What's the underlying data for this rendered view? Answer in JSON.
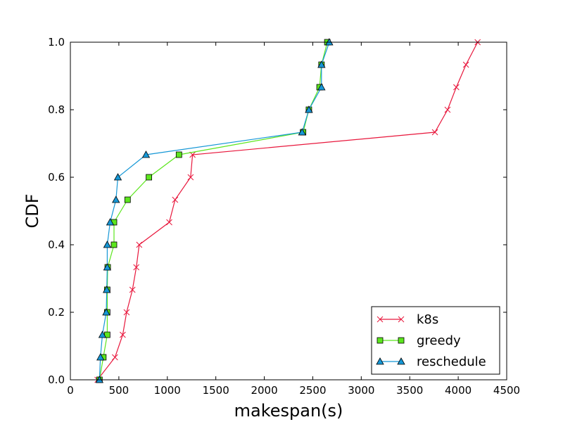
{
  "chart_data": {
    "type": "line",
    "xlabel": "makespan(s)",
    "ylabel": "CDF",
    "xlim": [
      0,
      4500
    ],
    "ylim": [
      0.0,
      1.0
    ],
    "xticks": [
      0,
      500,
      1000,
      1500,
      2000,
      2500,
      3000,
      3500,
      4000,
      4500
    ],
    "yticks": [
      0.0,
      0.2,
      0.4,
      0.6,
      0.8,
      1.0
    ],
    "xtick_labels": [
      "0",
      "500",
      "1000",
      "1500",
      "2000",
      "2500",
      "3000",
      "3500",
      "4000",
      "4500"
    ],
    "ytick_labels": [
      "0.0",
      "0.2",
      "0.4",
      "0.6",
      "0.8",
      "1.0"
    ],
    "grid": false,
    "legend_position": "bottom-right",
    "series": [
      {
        "name": "k8s",
        "color": "#e8173c",
        "marker": "x",
        "points": [
          [
            280,
            0.0
          ],
          [
            460,
            0.0667
          ],
          [
            540,
            0.1333
          ],
          [
            580,
            0.2
          ],
          [
            640,
            0.2667
          ],
          [
            680,
            0.3333
          ],
          [
            710,
            0.4
          ],
          [
            1020,
            0.4667
          ],
          [
            1080,
            0.5333
          ],
          [
            1240,
            0.6
          ],
          [
            1260,
            0.6667
          ],
          [
            3760,
            0.7333
          ],
          [
            3890,
            0.8
          ],
          [
            3980,
            0.8667
          ],
          [
            4080,
            0.9333
          ],
          [
            4200,
            1.0
          ]
        ]
      },
      {
        "name": "greedy",
        "color": "#5ce61e",
        "marker": "square",
        "points": [
          [
            300,
            0.0
          ],
          [
            340,
            0.0667
          ],
          [
            380,
            0.1333
          ],
          [
            380,
            0.2
          ],
          [
            380,
            0.2667
          ],
          [
            385,
            0.3333
          ],
          [
            450,
            0.4
          ],
          [
            450,
            0.4667
          ],
          [
            590,
            0.5333
          ],
          [
            810,
            0.6
          ],
          [
            1120,
            0.6667
          ],
          [
            2400,
            0.7333
          ],
          [
            2460,
            0.8
          ],
          [
            2570,
            0.8667
          ],
          [
            2590,
            0.9333
          ],
          [
            2650,
            1.0
          ]
        ]
      },
      {
        "name": "reschedule",
        "color": "#1597d6",
        "marker": "triangle",
        "points": [
          [
            300,
            0.0
          ],
          [
            310,
            0.0667
          ],
          [
            330,
            0.1333
          ],
          [
            370,
            0.2
          ],
          [
            375,
            0.2667
          ],
          [
            380,
            0.3333
          ],
          [
            380,
            0.4
          ],
          [
            410,
            0.4667
          ],
          [
            470,
            0.5333
          ],
          [
            490,
            0.6
          ],
          [
            780,
            0.6667
          ],
          [
            2390,
            0.7333
          ],
          [
            2460,
            0.8
          ],
          [
            2590,
            0.8667
          ],
          [
            2590,
            0.9333
          ],
          [
            2670,
            1.0
          ]
        ]
      }
    ]
  }
}
